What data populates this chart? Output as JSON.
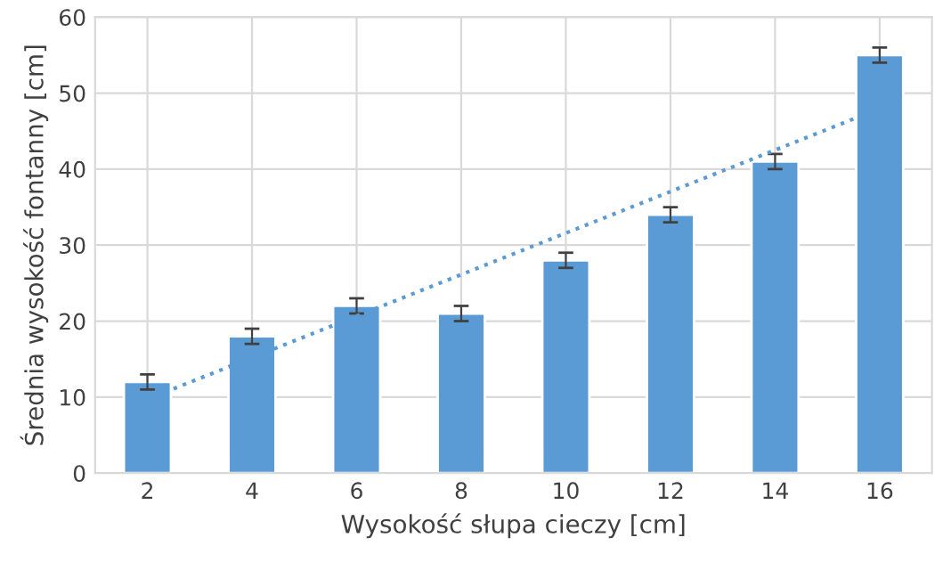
{
  "chart_data": {
    "type": "bar",
    "xlabel": "Wysokość słupa cieczy [cm]",
    "ylabel": "Średnia wysokość fontanny [cm]",
    "x": [
      2,
      4,
      6,
      8,
      10,
      12,
      14,
      16
    ],
    "series": [
      {
        "color": "#5b9bd5",
        "values": [
          12,
          18,
          22,
          21,
          28,
          34,
          41,
          55
        ],
        "errors": [
          1,
          1,
          1,
          1,
          1,
          1,
          1,
          1
        ]
      },
      {
        "type": "line",
        "color": "#5b9bd5",
        "line_style": "dotted",
        "x": [
          2.5,
          15.5
        ],
        "values": [
          11.1,
          46.6
        ]
      }
    ],
    "xlim": [
      1,
      17
    ],
    "xticks": [
      2,
      4,
      6,
      8,
      10,
      12,
      14,
      16
    ],
    "ylim": [
      0,
      60
    ],
    "yticks": [
      0,
      10,
      20,
      30,
      40,
      50,
      60
    ],
    "grid": true
  }
}
